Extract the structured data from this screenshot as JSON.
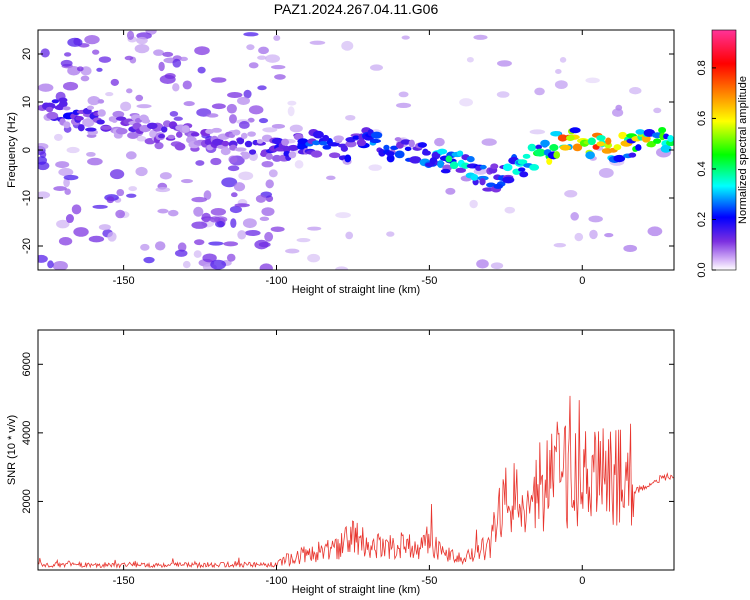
{
  "figure": {
    "title": "PAZ1.2024.267.04.11.G06"
  },
  "colors": {
    "snr_line": "#e8352e",
    "axis": "#000000",
    "background": "#ffffff"
  },
  "chart_data": [
    {
      "type": "heatmap",
      "xlabel": "Height of straight line (km)",
      "ylabel": "Frequency (Hz)",
      "xlim": [
        -178,
        30
      ],
      "ylim": [
        -25,
        25
      ],
      "xticks": [
        -150,
        -100,
        -50,
        0
      ],
      "yticks": [
        -20,
        -10,
        0,
        10,
        20
      ],
      "colorbar": {
        "label": "Normalized spectral amplitude",
        "range": [
          0,
          0.95
        ],
        "ticks": [
          0.0,
          0.2,
          0.4,
          0.6,
          0.8
        ],
        "colormap": [
          "#ffffff",
          "#7b2fe0",
          "#0000ff",
          "#00ffff",
          "#00ff00",
          "#ffff00",
          "#ff8000",
          "#ff0000",
          "#ff3399"
        ]
      },
      "ridge": {
        "x": [
          -178,
          -170,
          -160,
          -150,
          -140,
          -130,
          -120,
          -110,
          -100,
          -95,
          -90,
          -85,
          -80,
          -75,
          -70,
          -65,
          -60,
          -55,
          -50,
          -45,
          -40,
          -35,
          -30,
          -25,
          -20,
          -15,
          -10,
          -5,
          0,
          5,
          10,
          15,
          20,
          25,
          30
        ],
        "y": [
          10,
          8,
          6,
          5,
          4,
          3,
          2,
          1,
          0,
          1,
          2,
          1,
          0,
          0,
          2,
          1,
          0,
          0,
          -1,
          -2,
          -3,
          -5,
          -6,
          -5,
          -3,
          -1,
          0,
          3,
          2,
          1,
          0,
          1,
          2,
          2,
          2
        ],
        "amplitude": [
          0.25,
          0.3,
          0.25,
          0.2,
          0.2,
          0.2,
          0.2,
          0.2,
          0.25,
          0.3,
          0.35,
          0.3,
          0.3,
          0.3,
          0.35,
          0.35,
          0.35,
          0.35,
          0.4,
          0.45,
          0.45,
          0.4,
          0.4,
          0.4,
          0.45,
          0.5,
          0.75,
          0.85,
          0.8,
          0.85,
          0.8,
          0.7,
          0.7,
          0.6,
          0.55
        ]
      }
    },
    {
      "type": "line",
      "xlabel": "Height of straight line (km)",
      "ylabel": "SNR (10 * v/v)",
      "xlim": [
        -178,
        30
      ],
      "ylim": [
        0,
        7000
      ],
      "xticks": [
        -150,
        -100,
        -50,
        0
      ],
      "yticks": [
        2000,
        4000,
        6000
      ],
      "series": [
        {
          "x": [
            -178,
            -150,
            -120,
            -100,
            -95,
            -90,
            -80,
            -74,
            -70,
            -60,
            -55,
            -50,
            -45,
            -40,
            -35,
            -30,
            -28,
            -25,
            -20,
            -15,
            -10,
            -8,
            -5,
            -3,
            0,
            5,
            10,
            15,
            16,
            17,
            20,
            25,
            30
          ],
          "y": [
            150,
            150,
            150,
            160,
            400,
            600,
            800,
            1300,
            850,
            900,
            850,
            950,
            600,
            400,
            600,
            900,
            1800,
            2500,
            2700,
            3000,
            3300,
            3800,
            3400,
            3300,
            3200,
            3400,
            3300,
            3400,
            3500,
            2300,
            2400,
            2650,
            2750
          ]
        }
      ]
    }
  ]
}
